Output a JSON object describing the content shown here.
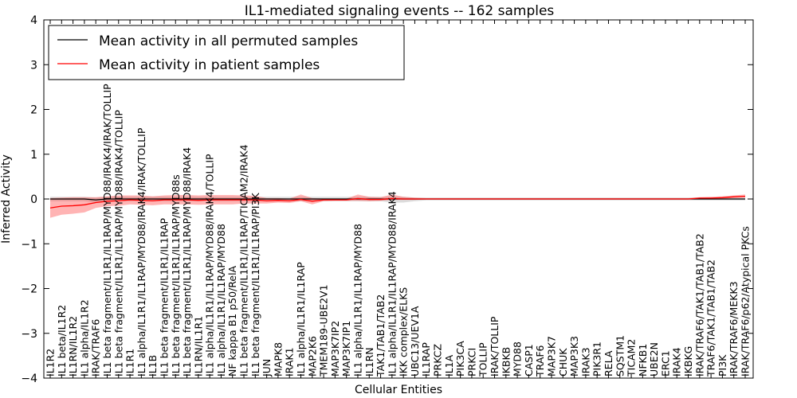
{
  "chart_data": {
    "type": "line",
    "title": "IL1-mediated signaling events -- 162 samples",
    "xlabel": "Cellular Entities",
    "ylabel": "Inferred Activity",
    "ylim": [
      -4,
      4
    ],
    "yticks": [
      -4,
      -3,
      -2,
      -1,
      0,
      1,
      2,
      3,
      4
    ],
    "grid": false,
    "legend_position": "top-left",
    "categories": [
      "IL1R2",
      "IL1 beta/IL1R2",
      "IL1RN/IL1R2",
      "IL1 alpha/IL1R2",
      "IRAK/TRAF6",
      "IL1 beta fragment/IL1R1/IL1RAP/MYD88/IRAK4/IRAK/TOLLIP",
      "IL1 beta fragment/IL1R1/IL1RAP/MYD88/IRAK4/TOLLIP",
      "IL1R1",
      "IL1 alpha/IL1R1/IL1RAP/MYD88/IRAK4/IRAK/TOLLIP",
      "IL1B",
      "IL1 beta fragment/IL1R1/IL1RAP",
      "IL1 beta fragment/IL1R1/IL1RAP/MYD88s",
      "IL1 beta fragment/IL1R1/IL1RAP/MYD88/IRAK4",
      "IL1RN/IL1R1",
      "IL1 alpha/IL1R1/IL1RAP/MYD88/IRAK4/TOLLIP",
      "IL1 alpha/IL1R1/IL1RAP/MYD88",
      "NF kappa B1 p50/RelA",
      "IL1 beta fragment/IL1R1/IL1RAP/TICAM2/IRAK4",
      "IL1 beta fragment/IL1R1/IL1RAP/PI3K",
      "JUN",
      "MAPK8",
      "IRAK1",
      "IL1 alpha/IL1R1/IL1RAP",
      "MAP2K6",
      "TMEM189-UBE2V1",
      "MAP3K7IP2",
      "MAP3K7IP1",
      "IL1 alpha/IL1R1/IL1RAP/MYD88",
      "IL1RN",
      "TAK1/TAB1/TAB2",
      "IL1 alpha/IL1R1/IL1RAP/MYD88/IRAK4",
      "IKK complex/ELKS",
      "UBC13/UEV1A",
      "IL1RAP",
      "PRKCZ",
      "IL1A",
      "PIK3CA",
      "PRKCI",
      "TOLLIP",
      "IRAK/TOLLIP",
      "IKBKB",
      "MYD88",
      "CASP1",
      "TRAF6",
      "MAP3K7",
      "CHUK",
      "MAP3K3",
      "IRAK3",
      "PIK3R1",
      "RELA",
      "SQSTM1",
      "TICAM2",
      "NFKB1",
      "UBE2N",
      "ERC1",
      "IRAK4",
      "IKBKG",
      "IRAK/TRAF6/TAK1/TAB1/TAB2",
      "TRAF6/TAK1/TAB1/TAB2",
      "PI3K",
      "IRAK/TRAF6/MEKK3",
      "IRAK/TRAF6/p62/Atypical PKCs"
    ],
    "series": [
      {
        "name": "Mean activity in all permuted samples",
        "color": "#000000",
        "values": [
          0.0,
          0.0,
          0.0,
          0.0,
          -0.02,
          0.0,
          0.0,
          0.0,
          0.0,
          0.0,
          0.0,
          0.0,
          0.0,
          0.0,
          0.0,
          0.0,
          0.0,
          0.0,
          0.0,
          0.0,
          0.0,
          0.0,
          0.0,
          0.0,
          0.0,
          0.0,
          0.0,
          0.0,
          0.0,
          0.0,
          0.0,
          0.0,
          0.0,
          0.0,
          0.0,
          0.0,
          0.0,
          0.0,
          0.0,
          0.0,
          0.0,
          0.0,
          0.0,
          0.0,
          0.0,
          0.0,
          0.0,
          0.0,
          0.0,
          0.0,
          0.0,
          0.0,
          0.0,
          0.0,
          0.0,
          0.0,
          0.0,
          0.0,
          0.0,
          0.0,
          0.0,
          0.0
        ],
        "lower": [
          -0.05,
          -0.05,
          -0.05,
          -0.05,
          -0.08,
          -0.05,
          -0.05,
          -0.05,
          -0.05,
          -0.05,
          -0.05,
          -0.05,
          -0.05,
          -0.05,
          -0.05,
          -0.05,
          -0.05,
          -0.05,
          -0.05,
          -0.05,
          -0.05,
          -0.05,
          -0.05,
          -0.05,
          -0.05,
          -0.05,
          -0.05,
          -0.05,
          -0.05,
          -0.05,
          -0.08,
          -0.08,
          -0.05,
          -0.03,
          -0.03,
          -0.03,
          -0.03,
          -0.03,
          -0.03,
          -0.03,
          -0.03,
          -0.03,
          -0.03,
          -0.03,
          -0.03,
          -0.03,
          -0.03,
          -0.03,
          -0.03,
          -0.03,
          -0.03,
          -0.03,
          -0.03,
          -0.03,
          -0.03,
          -0.03,
          -0.03,
          -0.03,
          -0.03,
          -0.03,
          -0.03,
          -0.03
        ],
        "upper": [
          0.05,
          0.05,
          0.05,
          0.05,
          0.03,
          0.05,
          0.05,
          0.05,
          0.05,
          0.05,
          0.05,
          0.05,
          0.05,
          0.05,
          0.05,
          0.05,
          0.05,
          0.05,
          0.05,
          0.05,
          0.05,
          0.05,
          0.05,
          0.05,
          0.05,
          0.05,
          0.05,
          0.05,
          0.05,
          0.05,
          0.05,
          0.05,
          0.03,
          0.03,
          0.03,
          0.03,
          0.03,
          0.03,
          0.03,
          0.03,
          0.03,
          0.03,
          0.03,
          0.03,
          0.03,
          0.03,
          0.03,
          0.03,
          0.03,
          0.03,
          0.03,
          0.03,
          0.03,
          0.03,
          0.03,
          0.03,
          0.03,
          0.03,
          0.03,
          0.03,
          0.03,
          0.03
        ]
      },
      {
        "name": "Mean activity in patient samples",
        "color": "#ff0000",
        "values": [
          -0.2,
          -0.16,
          -0.15,
          -0.13,
          -0.08,
          -0.05,
          -0.04,
          -0.02,
          -0.03,
          -0.04,
          -0.02,
          -0.02,
          -0.02,
          -0.03,
          -0.02,
          -0.02,
          -0.02,
          -0.02,
          -0.02,
          -0.04,
          -0.03,
          -0.04,
          -0.01,
          -0.05,
          -0.02,
          -0.02,
          -0.02,
          0.01,
          -0.01,
          -0.01,
          0.01,
          0.0,
          0.0,
          0.0,
          0.0,
          0.0,
          0.0,
          0.0,
          0.0,
          0.0,
          0.0,
          0.0,
          0.0,
          0.0,
          0.0,
          0.0,
          0.0,
          0.0,
          0.0,
          0.0,
          0.0,
          0.0,
          0.0,
          0.0,
          0.0,
          0.0,
          0.0,
          0.02,
          0.02,
          0.03,
          0.05,
          0.06
        ],
        "lower": [
          -0.42,
          -0.35,
          -0.33,
          -0.3,
          -0.2,
          -0.16,
          -0.15,
          -0.12,
          -0.13,
          -0.14,
          -0.12,
          -0.12,
          -0.12,
          -0.13,
          -0.12,
          -0.12,
          -0.12,
          -0.1,
          -0.1,
          -0.1,
          -0.08,
          -0.09,
          -0.05,
          -0.12,
          -0.05,
          -0.04,
          -0.04,
          -0.04,
          -0.05,
          -0.04,
          -0.02,
          -0.02,
          -0.02,
          -0.01,
          -0.01,
          -0.01,
          -0.01,
          -0.01,
          -0.01,
          -0.01,
          -0.01,
          -0.01,
          -0.01,
          -0.01,
          -0.01,
          -0.01,
          -0.01,
          -0.01,
          -0.01,
          -0.01,
          -0.01,
          -0.01,
          -0.01,
          -0.01,
          -0.01,
          -0.01,
          -0.01,
          0.0,
          0.0,
          0.01,
          0.02,
          0.03
        ],
        "upper": [
          0.02,
          0.03,
          0.04,
          0.04,
          0.04,
          0.06,
          0.08,
          0.08,
          0.08,
          0.06,
          0.08,
          0.09,
          0.09,
          0.08,
          0.09,
          0.09,
          0.09,
          0.08,
          0.07,
          0.02,
          0.02,
          0.01,
          0.1,
          0.02,
          0.01,
          0.01,
          0.01,
          0.1,
          0.05,
          0.04,
          0.1,
          0.05,
          0.03,
          0.02,
          0.02,
          0.02,
          0.02,
          0.02,
          0.02,
          0.02,
          0.02,
          0.02,
          0.02,
          0.02,
          0.02,
          0.02,
          0.02,
          0.02,
          0.02,
          0.02,
          0.02,
          0.02,
          0.02,
          0.02,
          0.02,
          0.02,
          0.02,
          0.04,
          0.05,
          0.06,
          0.08,
          0.1
        ]
      }
    ]
  }
}
